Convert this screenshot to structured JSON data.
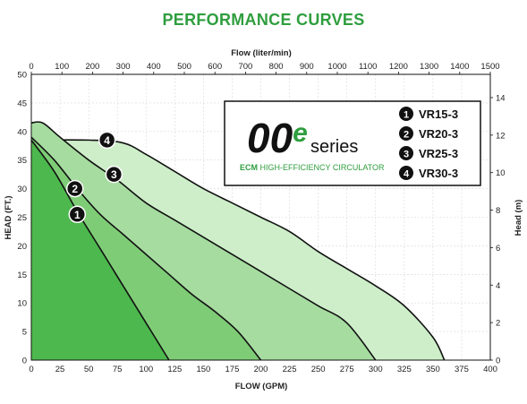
{
  "title": "PERFORMANCE CURVES",
  "colors": {
    "title": "#2e9e3e",
    "curve1": "#4db84d",
    "curve2": "#7fcc77",
    "curve3": "#a6dca0",
    "curve4": "#cdeec9",
    "stroke": "#111111",
    "grid": "#d8d8d8"
  },
  "logo": {
    "brand_text": "00e",
    "series_text": "series",
    "tagline_ecm": "ECM",
    "tagline_rest": " HIGH-EFFICIENCY CIRCULATOR"
  },
  "chart_data": {
    "type": "area",
    "x_label": "FLOW (GPM)",
    "y_label": "HEAD (FT.)",
    "x2_label": "Flow (liter/min)",
    "y2_label": "Head (m)",
    "xlim": [
      0,
      400
    ],
    "ylim": [
      0,
      50
    ],
    "x2lim": [
      0,
      1500
    ],
    "y2lim": [
      0,
      15.24
    ],
    "x_ticks": [
      0,
      25,
      50,
      75,
      100,
      125,
      150,
      175,
      200,
      225,
      250,
      275,
      300,
      325,
      350,
      375,
      400
    ],
    "y_ticks": [
      0,
      5,
      10,
      15,
      20,
      25,
      30,
      35,
      40,
      45,
      50
    ],
    "x2_ticks": [
      0,
      100,
      200,
      300,
      400,
      500,
      600,
      700,
      800,
      900,
      1000,
      1100,
      1200,
      1300,
      1400,
      1500
    ],
    "y2_ticks": [
      0,
      2,
      4,
      6,
      8,
      10,
      12,
      14
    ],
    "grid": true,
    "legend_position": "top-right",
    "series": [
      {
        "name": "VR15-3",
        "marker": "1",
        "points": [
          [
            0,
            38.5
          ],
          [
            20,
            33
          ],
          [
            40,
            26
          ],
          [
            60,
            19.5
          ],
          [
            80,
            13
          ],
          [
            100,
            6.5
          ],
          [
            120,
            0
          ]
        ],
        "marker_at": [
          40,
          25.5
        ]
      },
      {
        "name": "VR20-3",
        "marker": "2",
        "points": [
          [
            0,
            39
          ],
          [
            20,
            35
          ],
          [
            40,
            30
          ],
          [
            60,
            25.5
          ],
          [
            80,
            22
          ],
          [
            100,
            18.5
          ],
          [
            120,
            15
          ],
          [
            140,
            11.5
          ],
          [
            160,
            8.5
          ],
          [
            180,
            5
          ],
          [
            200,
            0
          ]
        ],
        "marker_at": [
          38,
          30
        ]
      },
      {
        "name": "VR25-3",
        "marker": "3",
        "points": [
          [
            0,
            41.5
          ],
          [
            10,
            41.5
          ],
          [
            25,
            39
          ],
          [
            50,
            35
          ],
          [
            75,
            31.5
          ],
          [
            100,
            27.5
          ],
          [
            125,
            24.5
          ],
          [
            150,
            21.5
          ],
          [
            175,
            18.5
          ],
          [
            200,
            15.5
          ],
          [
            225,
            12.5
          ],
          [
            250,
            9.5
          ],
          [
            275,
            6.5
          ],
          [
            300,
            0
          ]
        ],
        "marker_at": [
          72,
          32.5
        ]
      },
      {
        "name": "VR30-3",
        "marker": "4",
        "points": [
          [
            0,
            38.5
          ],
          [
            50,
            38.5
          ],
          [
            80,
            38
          ],
          [
            100,
            36
          ],
          [
            125,
            33
          ],
          [
            150,
            30
          ],
          [
            175,
            27.5
          ],
          [
            200,
            25
          ],
          [
            225,
            22.5
          ],
          [
            250,
            19
          ],
          [
            275,
            16
          ],
          [
            300,
            13
          ],
          [
            325,
            9.5
          ],
          [
            350,
            4
          ],
          [
            360,
            0
          ]
        ],
        "marker_at": [
          66,
          38.5
        ]
      }
    ]
  }
}
